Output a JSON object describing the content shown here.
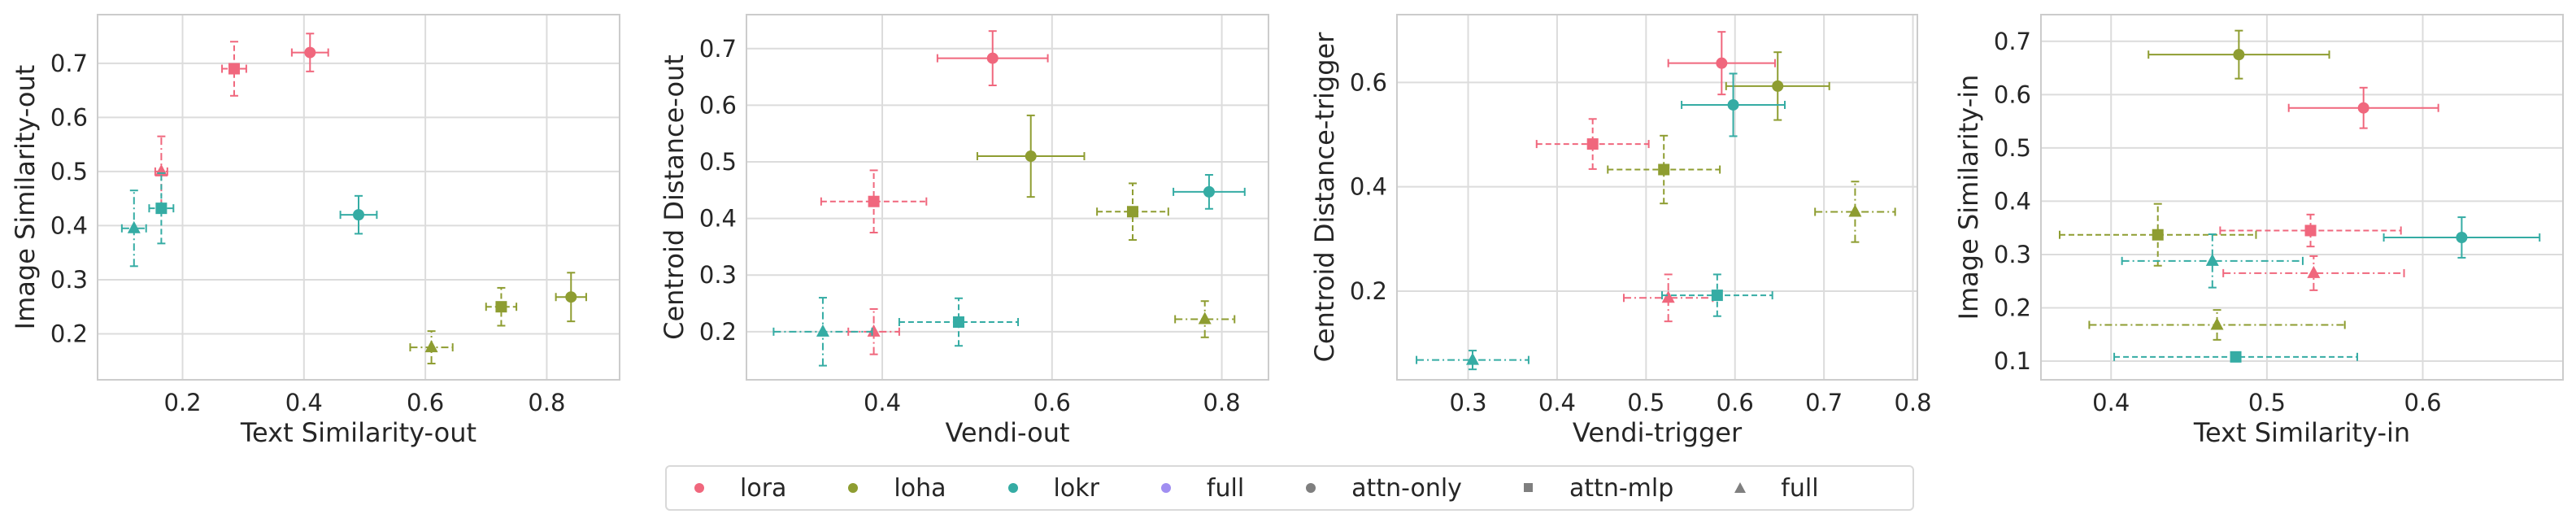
{
  "legend": [
    {
      "label": "lora",
      "marker": "circle",
      "color": "#f0677d"
    },
    {
      "label": "loha",
      "marker": "circle",
      "color": "#8e9d31"
    },
    {
      "label": "lokr",
      "marker": "circle",
      "color": "#35aca4"
    },
    {
      "label": "full",
      "marker": "circle",
      "color": "#a08ef1"
    },
    {
      "label": "attn-only",
      "marker": "circle",
      "color": "#7f7f7f"
    },
    {
      "label": "attn-mlp",
      "marker": "square",
      "color": "#7f7f7f"
    },
    {
      "label": "full",
      "marker": "triangle",
      "color": "#7f7f7f"
    }
  ],
  "colors": {
    "lora": "#f0677d",
    "loha": "#8e9d31",
    "lokr": "#35aca4",
    "full": "#a08ef1",
    "gray": "#7f7f7f",
    "grid": "#dcdcdc"
  },
  "line_styles": {
    "attn-only": "solid",
    "attn-mlp": "dashed",
    "full": "dashdot"
  },
  "chart_data": [
    {
      "type": "scatter",
      "xlabel": "Text Similarity-out",
      "ylabel": "Image Similarity-out",
      "xlim": [
        0.06,
        0.92
      ],
      "ylim": [
        0.115,
        0.79
      ],
      "xticks": [
        0.2,
        0.4,
        0.6,
        0.8
      ],
      "xtick_labels": [
        "0.2",
        "0.4",
        "0.6",
        "0.8"
      ],
      "yticks": [
        0.2,
        0.3,
        0.4,
        0.5,
        0.6,
        0.7
      ],
      "ytick_labels": [
        "0.2",
        "0.3",
        "0.4",
        "0.5",
        "0.6",
        "0.7"
      ],
      "grid": true,
      "points": [
        {
          "adapter": "lora",
          "layers": "attn-only",
          "x": 0.41,
          "y": 0.72,
          "xerr": 0.03,
          "yerr": 0.035
        },
        {
          "adapter": "lora",
          "layers": "attn-mlp",
          "x": 0.285,
          "y": 0.69,
          "xerr": 0.02,
          "yerr": 0.05
        },
        {
          "adapter": "lora",
          "layers": "full",
          "x": 0.165,
          "y": 0.5,
          "xerr": 0.01,
          "yerr": 0.065
        },
        {
          "adapter": "loha",
          "layers": "attn-only",
          "x": 0.84,
          "y": 0.268,
          "xerr": 0.025,
          "yerr": 0.045
        },
        {
          "adapter": "loha",
          "layers": "attn-mlp",
          "x": 0.725,
          "y": 0.25,
          "xerr": 0.025,
          "yerr": 0.035
        },
        {
          "adapter": "loha",
          "layers": "full",
          "x": 0.61,
          "y": 0.175,
          "xerr": 0.035,
          "yerr": 0.03
        },
        {
          "adapter": "lokr",
          "layers": "attn-only",
          "x": 0.49,
          "y": 0.42,
          "xerr": 0.03,
          "yerr": 0.035
        },
        {
          "adapter": "lokr",
          "layers": "attn-mlp",
          "x": 0.165,
          "y": 0.432,
          "xerr": 0.02,
          "yerr": 0.065
        },
        {
          "adapter": "lokr",
          "layers": "full",
          "x": 0.12,
          "y": 0.395,
          "xerr": 0.02,
          "yerr": 0.07
        }
      ]
    },
    {
      "type": "scatter",
      "xlabel": "Vendi-out",
      "ylabel": "Centroid Distance-out",
      "xlim": [
        0.24,
        0.855
      ],
      "ylim": [
        0.115,
        0.76
      ],
      "xticks": [
        0.4,
        0.6,
        0.8
      ],
      "xtick_labels": [
        "0.4",
        "0.6",
        "0.8"
      ],
      "yticks": [
        0.2,
        0.3,
        0.4,
        0.5,
        0.6,
        0.7
      ],
      "ytick_labels": [
        "0.2",
        "0.3",
        "0.4",
        "0.5",
        "0.6",
        "0.7"
      ],
      "grid": true,
      "points": [
        {
          "adapter": "lora",
          "layers": "attn-only",
          "x": 0.53,
          "y": 0.683,
          "xerr": 0.065,
          "yerr": 0.048
        },
        {
          "adapter": "lora",
          "layers": "attn-mlp",
          "x": 0.39,
          "y": 0.43,
          "xerr": 0.062,
          "yerr": 0.055
        },
        {
          "adapter": "lora",
          "layers": "full",
          "x": 0.39,
          "y": 0.2,
          "xerr": 0.03,
          "yerr": 0.04
        },
        {
          "adapter": "loha",
          "layers": "attn-only",
          "x": 0.575,
          "y": 0.51,
          "xerr": 0.063,
          "yerr": 0.072
        },
        {
          "adapter": "loha",
          "layers": "attn-mlp",
          "x": 0.695,
          "y": 0.412,
          "xerr": 0.042,
          "yerr": 0.05
        },
        {
          "adapter": "loha",
          "layers": "full",
          "x": 0.78,
          "y": 0.222,
          "xerr": 0.035,
          "yerr": 0.032
        },
        {
          "adapter": "lokr",
          "layers": "attn-only",
          "x": 0.785,
          "y": 0.447,
          "xerr": 0.042,
          "yerr": 0.03
        },
        {
          "adapter": "lokr",
          "layers": "attn-mlp",
          "x": 0.49,
          "y": 0.217,
          "xerr": 0.07,
          "yerr": 0.042
        },
        {
          "adapter": "lokr",
          "layers": "full",
          "x": 0.33,
          "y": 0.2,
          "xerr": 0.058,
          "yerr": 0.06
        }
      ]
    },
    {
      "type": "scatter",
      "xlabel": "Vendi-trigger",
      "ylabel": "Centroid Distance-trigger",
      "xlim": [
        0.22,
        0.805
      ],
      "ylim": [
        0.03,
        0.73
      ],
      "xticks": [
        0.3,
        0.4,
        0.5,
        0.6,
        0.7,
        0.8
      ],
      "xtick_labels": [
        "0.3",
        "0.4",
        "0.5",
        "0.6",
        "0.7",
        "0.8"
      ],
      "yticks": [
        0.2,
        0.4,
        0.6
      ],
      "ytick_labels": [
        "0.2",
        "0.4",
        "0.6"
      ],
      "grid": true,
      "points": [
        {
          "adapter": "lora",
          "layers": "attn-only",
          "x": 0.585,
          "y": 0.637,
          "xerr": 0.06,
          "yerr": 0.06
        },
        {
          "adapter": "lora",
          "layers": "attn-mlp",
          "x": 0.44,
          "y": 0.482,
          "xerr": 0.063,
          "yerr": 0.048
        },
        {
          "adapter": "lora",
          "layers": "full",
          "x": 0.525,
          "y": 0.187,
          "xerr": 0.05,
          "yerr": 0.045
        },
        {
          "adapter": "loha",
          "layers": "attn-only",
          "x": 0.648,
          "y": 0.593,
          "xerr": 0.058,
          "yerr": 0.065
        },
        {
          "adapter": "loha",
          "layers": "attn-mlp",
          "x": 0.52,
          "y": 0.433,
          "xerr": 0.063,
          "yerr": 0.065
        },
        {
          "adapter": "loha",
          "layers": "full",
          "x": 0.735,
          "y": 0.352,
          "xerr": 0.045,
          "yerr": 0.058
        },
        {
          "adapter": "lokr",
          "layers": "attn-only",
          "x": 0.598,
          "y": 0.557,
          "xerr": 0.058,
          "yerr": 0.06
        },
        {
          "adapter": "lokr",
          "layers": "attn-mlp",
          "x": 0.58,
          "y": 0.192,
          "xerr": 0.062,
          "yerr": 0.04
        },
        {
          "adapter": "lokr",
          "layers": "full",
          "x": 0.305,
          "y": 0.068,
          "xerr": 0.063,
          "yerr": 0.018
        }
      ]
    },
    {
      "type": "scatter",
      "xlabel": "Text Similarity-in",
      "ylabel": "Image Similarity-in",
      "xlim": [
        0.355,
        0.69
      ],
      "ylim": [
        0.065,
        0.75
      ],
      "xticks": [
        0.4,
        0.5,
        0.6
      ],
      "xtick_labels": [
        "0.4",
        "0.5",
        "0.6"
      ],
      "yticks": [
        0.1,
        0.2,
        0.3,
        0.4,
        0.5,
        0.6,
        0.7
      ],
      "ytick_labels": [
        "0.1",
        "0.2",
        "0.3",
        "0.4",
        "0.5",
        "0.6",
        "0.7"
      ],
      "grid": true,
      "points": [
        {
          "adapter": "lora",
          "layers": "attn-only",
          "x": 0.562,
          "y": 0.575,
          "xerr": 0.048,
          "yerr": 0.038
        },
        {
          "adapter": "lora",
          "layers": "attn-mlp",
          "x": 0.528,
          "y": 0.345,
          "xerr": 0.058,
          "yerr": 0.03
        },
        {
          "adapter": "lora",
          "layers": "full",
          "x": 0.53,
          "y": 0.265,
          "xerr": 0.058,
          "yerr": 0.032
        },
        {
          "adapter": "loha",
          "layers": "attn-only",
          "x": 0.482,
          "y": 0.675,
          "xerr": 0.058,
          "yerr": 0.045
        },
        {
          "adapter": "loha",
          "layers": "attn-mlp",
          "x": 0.43,
          "y": 0.337,
          "xerr": 0.063,
          "yerr": 0.058
        },
        {
          "adapter": "loha",
          "layers": "full",
          "x": 0.468,
          "y": 0.168,
          "xerr": 0.082,
          "yerr": 0.028
        },
        {
          "adapter": "lokr",
          "layers": "attn-only",
          "x": 0.625,
          "y": 0.332,
          "xerr": 0.05,
          "yerr": 0.038
        },
        {
          "adapter": "lokr",
          "layers": "attn-mlp",
          "x": 0.48,
          "y": 0.108,
          "xerr": 0.078,
          "yerr": 0.0
        },
        {
          "adapter": "lokr",
          "layers": "full",
          "x": 0.465,
          "y": 0.288,
          "xerr": 0.058,
          "yerr": 0.05
        }
      ]
    }
  ]
}
